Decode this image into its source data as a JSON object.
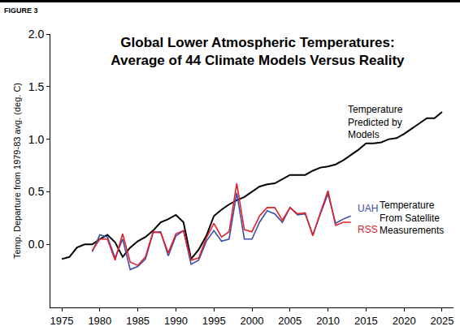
{
  "chart_data": {
    "type": "line",
    "title": [
      "Global Lower Atmospheric Temperatures:",
      "Average of 44 Climate Models Versus Reality"
    ],
    "y_label": "Temp. Departure from 1979-83 avg. (deg. C)",
    "annotations": [
      {
        "text": [
          "FIGURE 3"
        ]
      },
      {
        "text": [
          "Temperature",
          "Predicted by",
          "Models"
        ]
      },
      {
        "text": [
          "Temperature",
          "From Satellite",
          "Measurements"
        ]
      }
    ],
    "x": [
      1975,
      1976,
      1977,
      1978,
      1979,
      1980,
      1981,
      1982,
      1983,
      1984,
      1985,
      1986,
      1987,
      1988,
      1989,
      1990,
      1991,
      1992,
      1993,
      1994,
      1995,
      1996,
      1997,
      1998,
      1999,
      2000,
      2001,
      2002,
      2003,
      2004,
      2005,
      2006,
      2007,
      2008,
      2009,
      2010,
      2011,
      2012,
      2013,
      2014,
      2015,
      2016,
      2017,
      2018,
      2019,
      2020,
      2021,
      2022,
      2023,
      2024,
      2025
    ],
    "series": [
      {
        "color": "#000000",
        "values": [
          -0.14,
          -0.12,
          -0.03,
          0.0,
          0.0,
          0.05,
          0.09,
          0.02,
          -0.12,
          -0.03,
          0.03,
          0.07,
          0.13,
          0.21,
          0.24,
          0.28,
          0.21,
          -0.14,
          -0.05,
          0.08,
          0.27,
          0.33,
          0.38,
          0.42,
          0.45,
          0.5,
          0.55,
          0.57,
          0.58,
          0.62,
          0.66,
          0.66,
          0.66,
          0.7,
          0.73,
          0.74,
          0.76,
          0.8,
          0.85,
          0.9,
          0.96,
          0.96,
          0.97,
          1.0,
          1.01,
          1.05,
          1.1,
          1.15,
          1.2,
          1.2,
          1.26
        ]
      },
      {
        "name": "UAH",
        "color": "#3b4fa8",
        "values": [
          null,
          null,
          null,
          null,
          -0.07,
          0.09,
          0.07,
          -0.13,
          0.05,
          -0.24,
          -0.21,
          -0.14,
          0.11,
          0.12,
          -0.11,
          0.08,
          0.13,
          -0.19,
          -0.15,
          0.03,
          0.13,
          0.03,
          0.05,
          0.49,
          0.05,
          0.05,
          0.21,
          0.32,
          0.29,
          0.21,
          0.35,
          0.28,
          0.29,
          0.09,
          0.29,
          0.48,
          0.2,
          0.24,
          0.27,
          null,
          null,
          null,
          null,
          null,
          null,
          null,
          null,
          null,
          null,
          null,
          null
        ]
      },
      {
        "name": "RSS",
        "color": "#e3202a",
        "values": [
          null,
          null,
          null,
          null,
          -0.06,
          0.05,
          0.05,
          -0.15,
          0.1,
          -0.17,
          -0.2,
          -0.12,
          0.12,
          0.11,
          -0.08,
          0.1,
          0.13,
          -0.15,
          -0.13,
          0.06,
          0.2,
          0.07,
          0.12,
          0.58,
          0.14,
          0.12,
          0.27,
          0.35,
          0.35,
          0.23,
          0.35,
          0.29,
          0.3,
          0.08,
          0.3,
          0.51,
          0.18,
          0.21,
          0.21,
          null,
          null,
          null,
          null,
          null,
          null,
          null,
          null,
          null,
          null,
          null,
          null
        ]
      }
    ],
    "xlim": [
      1973.5,
      2026.5
    ],
    "xticks": [
      1975,
      1980,
      1985,
      1990,
      1995,
      2000,
      2005,
      2010,
      2015,
      2020,
      2025
    ],
    "ylim": [
      -0.6,
      2.0
    ],
    "yticks": [
      {
        "value": 0,
        "label": "0.0"
      },
      {
        "value": 0.5,
        "label": "0.5"
      },
      {
        "value": 1,
        "label": "1.0"
      },
      {
        "value": 1.5,
        "label": "1.5"
      },
      {
        "value": 2,
        "label": "2.0"
      }
    ],
    "grid": false
  }
}
